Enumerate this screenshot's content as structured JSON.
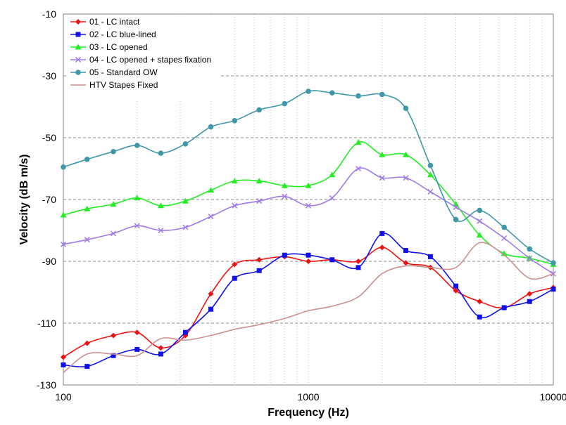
{
  "chart_data": {
    "type": "line",
    "xlabel": "Frequency (Hz)",
    "ylabel": "Velocity (dB m/s)",
    "x_scale": "log",
    "xlim": [
      100,
      10000
    ],
    "ylim": [
      -130,
      -10
    ],
    "x_ticks": [
      100,
      1000,
      10000
    ],
    "x_tick_labels": [
      "100",
      "1000",
      "10000"
    ],
    "y_ticks": [
      -130,
      -110,
      -90,
      -70,
      -50,
      -30,
      -10
    ],
    "y_tick_labels": [
      "-130",
      "-110",
      "-90",
      "-70",
      "-50",
      "-30",
      "-10"
    ],
    "grid": "dashed horizontal major, dotted vertical minor",
    "legend_position": "top-left",
    "series": [
      {
        "name": "01 - LC intact",
        "color": "#ee1111",
        "marker": "diamond",
        "x": [
          100,
          125,
          160,
          200,
          250,
          315,
          400,
          500,
          630,
          800,
          1000,
          1250,
          1600,
          2000,
          2500,
          3150,
          4000,
          5000,
          6300,
          8000,
          10000
        ],
        "y": [
          -121,
          -116.5,
          -114,
          -113,
          -118,
          -114,
          -100.5,
          -91,
          -89.5,
          -88.5,
          -90,
          -89.5,
          -90,
          -85.5,
          -90.5,
          -92,
          -99.5,
          -103,
          -105,
          -100.5,
          -98.5
        ]
      },
      {
        "name": "02 - LC blue-lined",
        "color": "#1111ee",
        "marker": "square",
        "x": [
          100,
          125,
          160,
          200,
          250,
          315,
          400,
          500,
          630,
          800,
          1000,
          1250,
          1600,
          2000,
          2500,
          3150,
          4000,
          5000,
          6300,
          8000,
          10000
        ],
        "y": [
          -123.5,
          -124,
          -120.5,
          -118.5,
          -120,
          -113,
          -105.5,
          -95.5,
          -93,
          -88,
          -88,
          -89.5,
          -92,
          -81,
          -86.5,
          -88.5,
          -98,
          -108,
          -105,
          -103,
          -99
        ]
      },
      {
        "name": "03 - LC opened",
        "color": "#22ee22",
        "marker": "triangle",
        "x": [
          100,
          125,
          160,
          200,
          250,
          315,
          400,
          500,
          630,
          800,
          1000,
          1250,
          1600,
          2000,
          2500,
          3150,
          4000,
          5000,
          6300,
          8000,
          10000
        ],
        "y": [
          -75,
          -73,
          -71.5,
          -69.5,
          -72,
          -70.5,
          -67,
          -64,
          -64,
          -65.5,
          -65.5,
          -62,
          -51.5,
          -55.5,
          -55.5,
          -62,
          -71.5,
          -81.5,
          -87.5,
          -89,
          -91
        ]
      },
      {
        "name": "04 - LC opened + stapes fixation",
        "color": "#a07ae8",
        "marker": "x",
        "x": [
          100,
          125,
          160,
          200,
          250,
          315,
          400,
          500,
          630,
          800,
          1000,
          1250,
          1600,
          2000,
          2500,
          3150,
          4000,
          5000,
          6300,
          8000,
          10000
        ],
        "y": [
          -84.5,
          -83,
          -81,
          -78.5,
          -80,
          -79,
          -75.5,
          -72,
          -70.5,
          -69,
          -72,
          -69.5,
          -60,
          -63,
          -63,
          -67.5,
          -72.5,
          -77,
          -82.5,
          -89,
          -94
        ]
      },
      {
        "name": "05 - Standard OW",
        "color": "#3f97a8",
        "marker": "circle",
        "x": [
          100,
          125,
          160,
          200,
          250,
          315,
          400,
          500,
          630,
          800,
          1000,
          1250,
          1600,
          2000,
          2500,
          3150,
          4000,
          5000,
          6300,
          8000,
          10000
        ],
        "y": [
          -59.5,
          -57,
          -54.5,
          -52.5,
          -55,
          -52,
          -46.5,
          -44.5,
          -41,
          -39,
          -35,
          -35.5,
          -36.5,
          -36,
          -40.5,
          -59,
          -76.5,
          -73.5,
          -79,
          -86,
          -90.5
        ]
      },
      {
        "name": "HTV Stapes Fixed",
        "color": "#cc9090",
        "marker": "none",
        "x": [
          100,
          125,
          160,
          200,
          250,
          315,
          400,
          500,
          630,
          800,
          1000,
          1250,
          1600,
          2000,
          2500,
          3150,
          4000,
          5000,
          6300,
          8000,
          10000
        ],
        "y": [
          -126,
          -120,
          -120,
          -120.5,
          -115,
          -115.5,
          -114,
          -112,
          -110.5,
          -108.5,
          -106,
          -104.5,
          -101.5,
          -94,
          -91.5,
          -92,
          -92,
          -84,
          -88,
          -95.5,
          -94
        ]
      }
    ]
  }
}
